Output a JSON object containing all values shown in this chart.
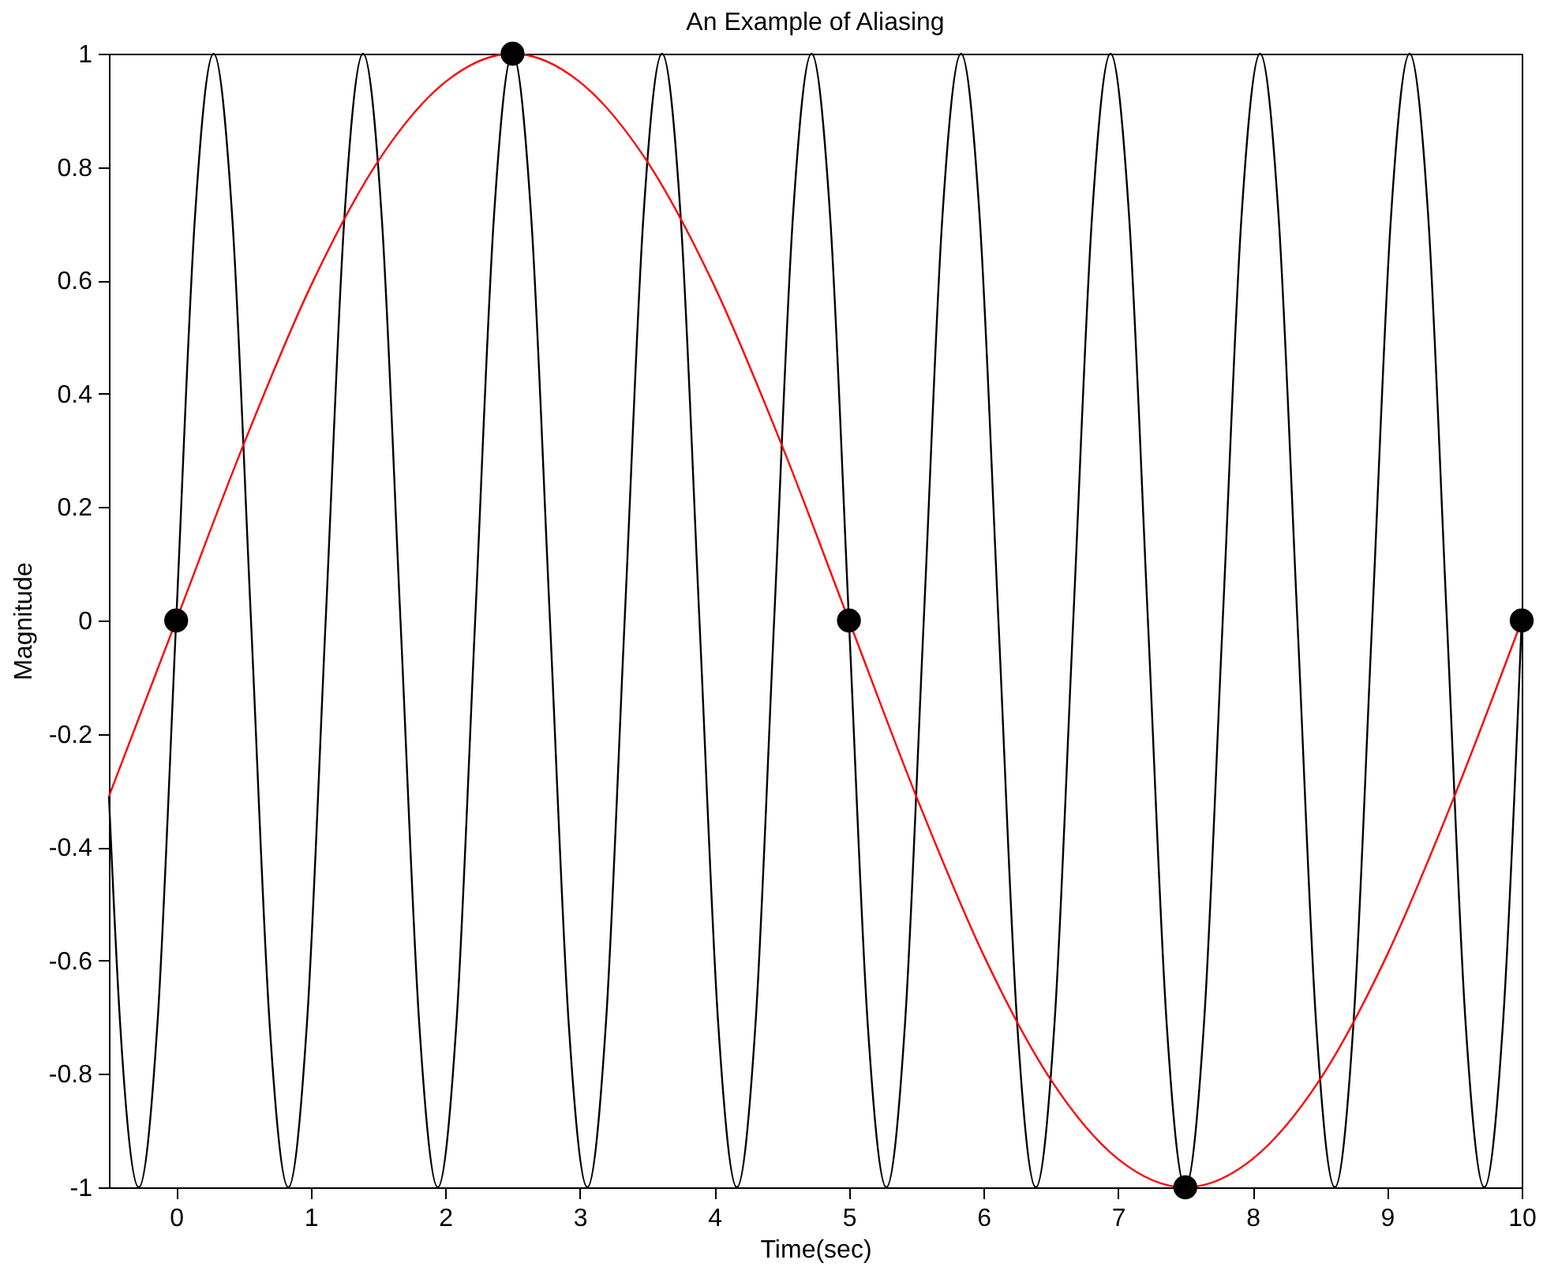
{
  "chart_data": {
    "type": "line",
    "title": "An Example of Aliasing",
    "xlabel": "Time(sec)",
    "ylabel": "Magnitude",
    "xlim": [
      -0.5,
      10
    ],
    "ylim": [
      -1,
      1
    ],
    "xticks": [
      0,
      1,
      2,
      3,
      4,
      5,
      6,
      7,
      8,
      9,
      10
    ],
    "yticks": [
      -1,
      -0.8,
      -0.6,
      -0.4,
      -0.2,
      0,
      0.2,
      0.4,
      0.6,
      0.8,
      1
    ],
    "grid": false,
    "series": [
      {
        "color": "#000000",
        "x": [
          -0.5,
          -0.417,
          -0.278,
          -0.139,
          0,
          0.139,
          0.278,
          0.417,
          0.556,
          0.694,
          0.833,
          0.972,
          1.111,
          1.25,
          1.389,
          1.528,
          1.667,
          1.806,
          1.944,
          2.083,
          2.222,
          2.361,
          2.5,
          2.639,
          2.778,
          2.917,
          3.056,
          3.194,
          3.333,
          3.472,
          3.611,
          3.75,
          3.889,
          4.028,
          4.167,
          4.306,
          4.444,
          4.583,
          4.722,
          4.861,
          5,
          5.139,
          5.278,
          5.417,
          5.556,
          5.694,
          5.833,
          5.972,
          6.111,
          6.25,
          6.389,
          6.528,
          6.667,
          6.806,
          6.944,
          7.083,
          7.222,
          7.361,
          7.5,
          7.639,
          7.778,
          7.917,
          8.056,
          8.194,
          8.333,
          8.472,
          8.611,
          8.75,
          8.889,
          9.028,
          9.167,
          9.306,
          9.444,
          9.583,
          9.722,
          9.861,
          10
        ],
        "values": [
          -0.31,
          -0.71,
          -1,
          -0.71,
          0,
          0.71,
          1,
          0.71,
          0,
          -0.71,
          -1,
          -0.71,
          0,
          0.71,
          1,
          0.71,
          0,
          -0.71,
          -1,
          -0.71,
          0,
          0.71,
          1,
          0.71,
          0,
          -0.71,
          -1,
          -0.71,
          0,
          0.71,
          1,
          0.71,
          0,
          -0.71,
          -1,
          -0.71,
          0,
          0.71,
          1,
          0.71,
          0,
          -0.71,
          -1,
          -0.71,
          0,
          0.71,
          1,
          0.71,
          0,
          -0.71,
          -1,
          -0.71,
          0,
          0.71,
          1,
          0.71,
          0,
          -0.71,
          -1,
          -0.71,
          0,
          0.71,
          1,
          0.71,
          0,
          -0.71,
          -1,
          -0.71,
          0,
          0.71,
          1,
          0.71,
          0,
          -0.71,
          -1,
          -0.71,
          0
        ]
      },
      {
        "color": "#ff0000",
        "x": [
          -0.5,
          0,
          0.5,
          1,
          1.5,
          2,
          2.5,
          3,
          3.5,
          4,
          4.5,
          5,
          5.5,
          6,
          6.5,
          7,
          7.5,
          8,
          8.5,
          9,
          9.5,
          10
        ],
        "values": [
          -0.31,
          0,
          0.31,
          0.59,
          0.81,
          0.95,
          1,
          0.95,
          0.81,
          0.59,
          0.31,
          0,
          -0.31,
          -0.59,
          -0.81,
          -0.95,
          -1,
          -0.95,
          -0.81,
          -0.59,
          -0.31,
          0
        ]
      },
      {
        "type": "scatter",
        "color": "#000000",
        "marker": "circle",
        "x": [
          0,
          2.5,
          5,
          7.5,
          10
        ],
        "values": [
          0,
          1,
          0,
          -1,
          0
        ]
      }
    ]
  }
}
